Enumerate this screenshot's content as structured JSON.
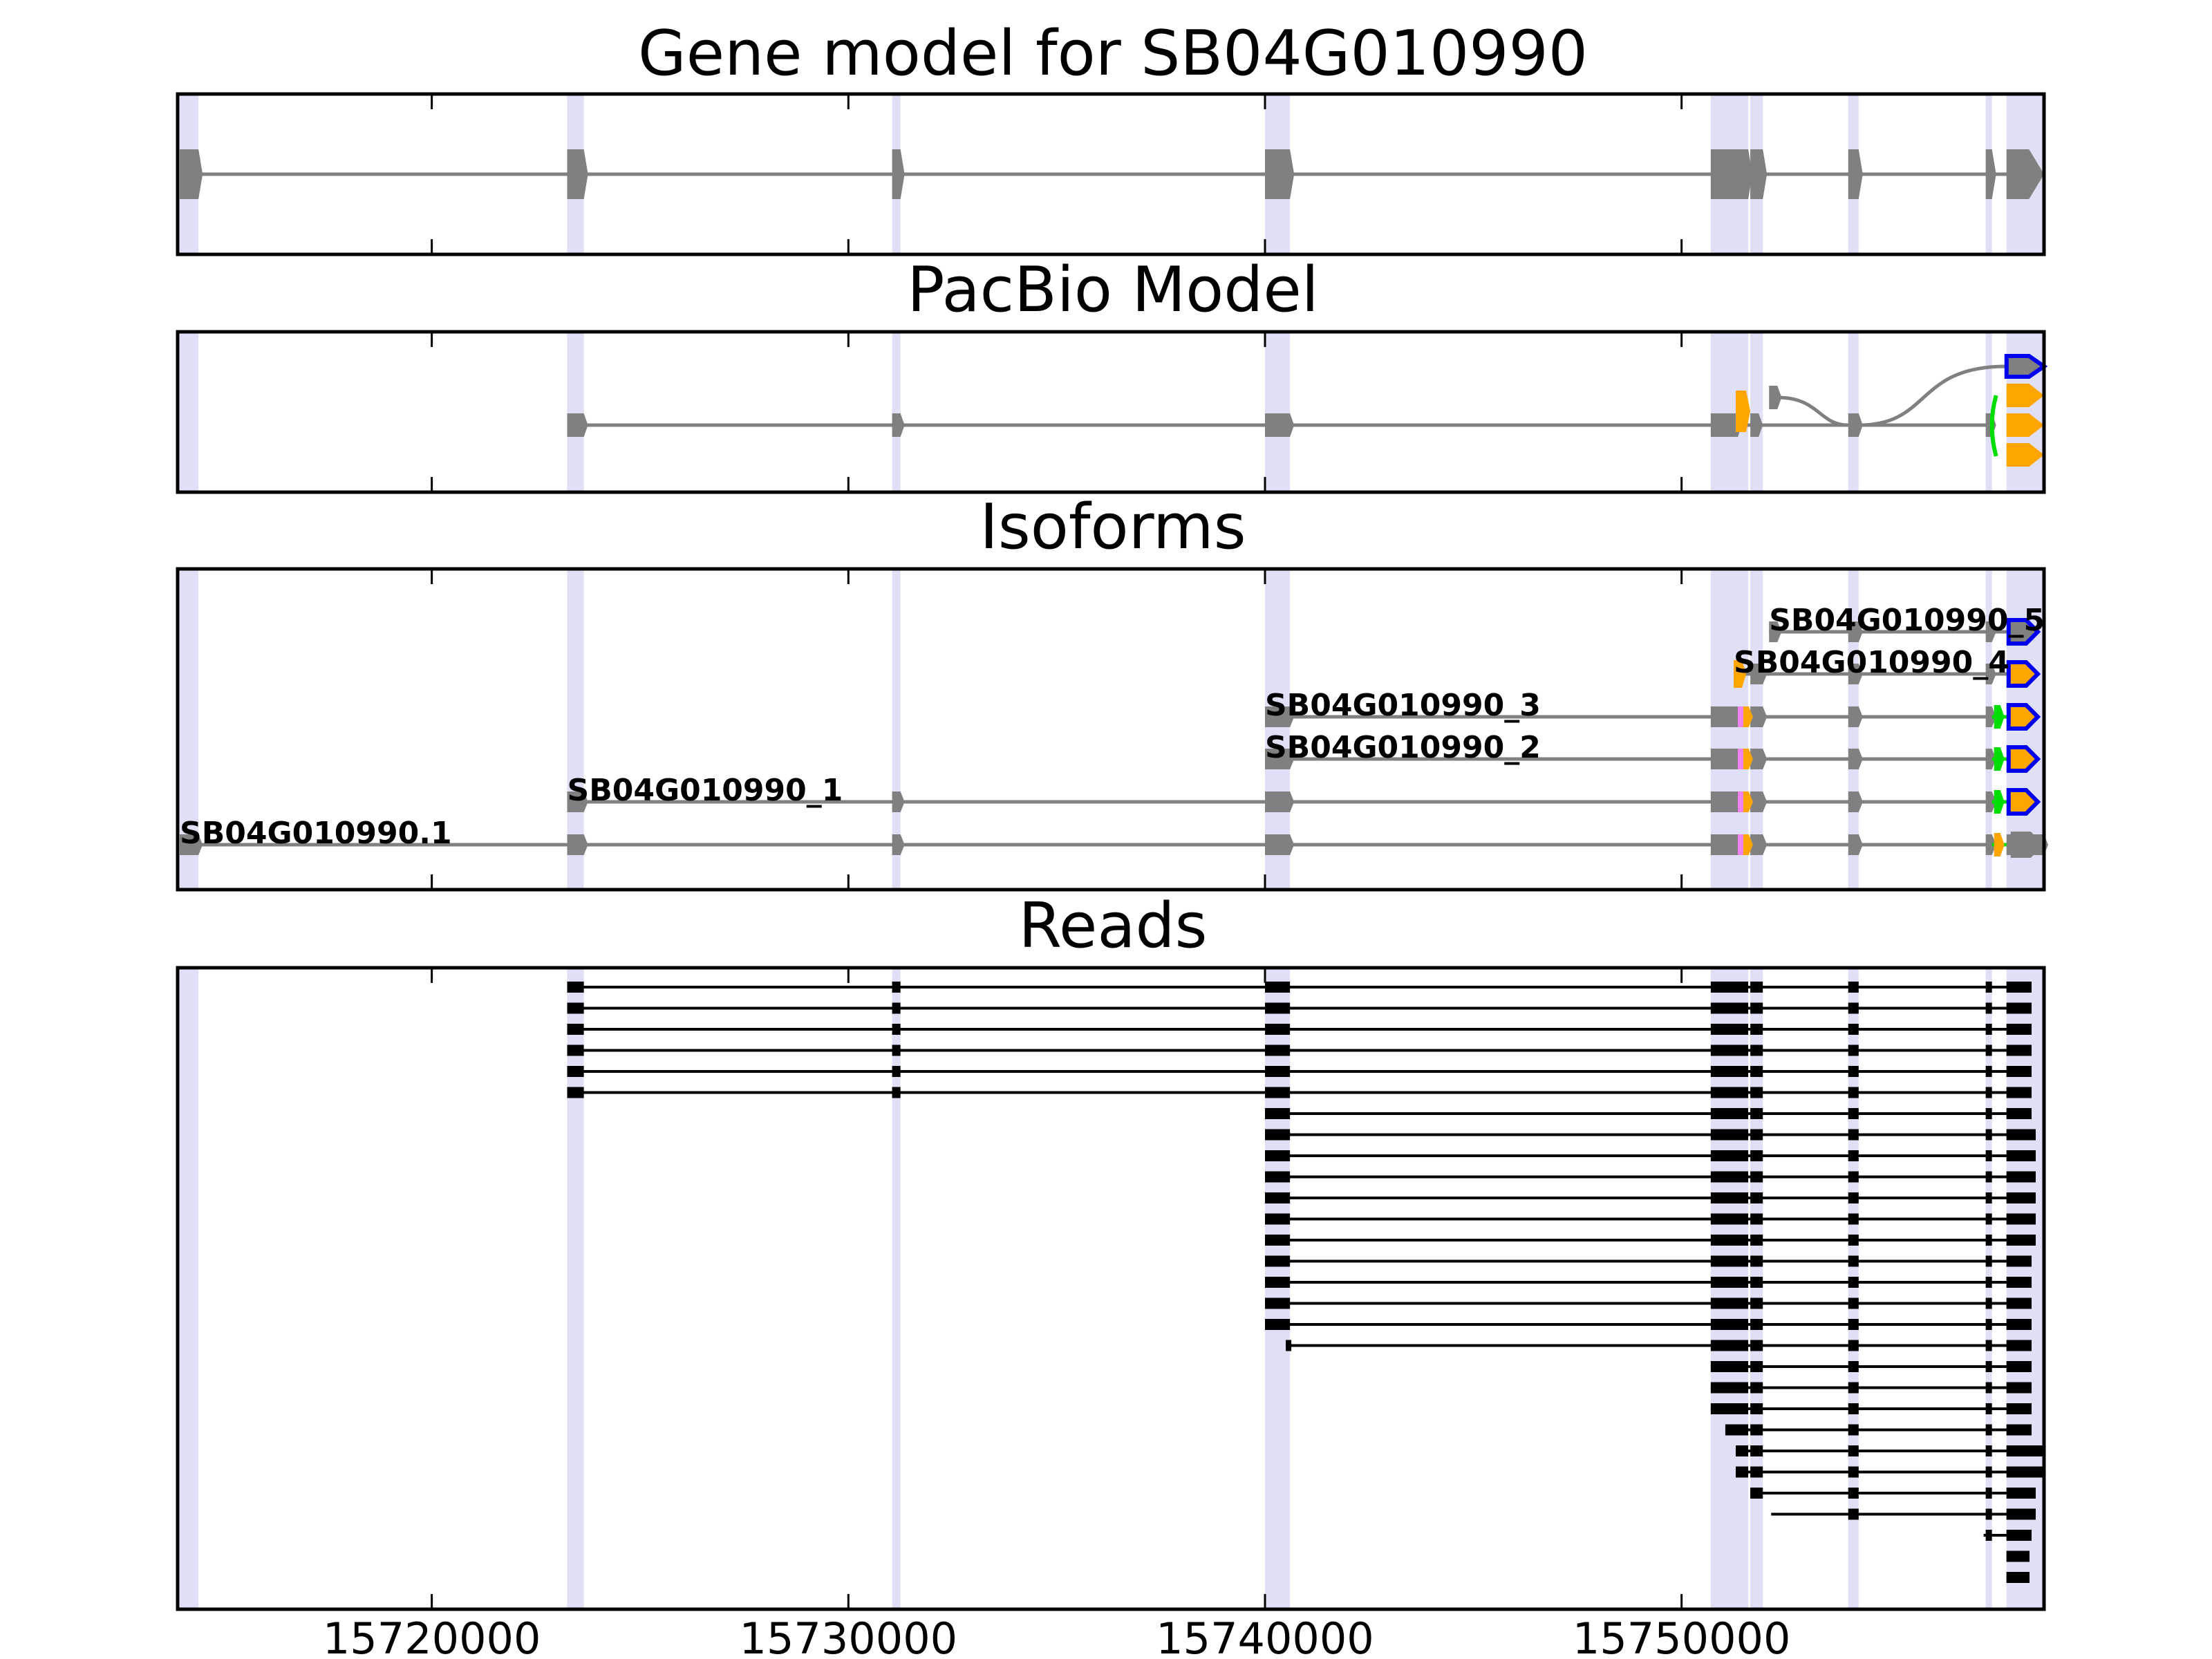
{
  "figure": {
    "title": "Gene model for SB04G010990",
    "x_ticks": [
      15720000,
      15730000,
      15740000,
      15750000
    ]
  },
  "colors": {
    "intron": "#808080",
    "exon": "#808080",
    "highlight": "#dcdcf5",
    "pacbio_outline": "#0000ee",
    "alt_orange": "#ffa500",
    "alt_green": "#00dd00",
    "alt_pink": "#ee82ee",
    "read": "#000000"
  },
  "chart_data": [
    {
      "type": "gene_structure",
      "title": "",
      "panel": "gene_model",
      "xlim": [
        15713900,
        15758700
      ],
      "exons": [
        [
          15713950,
          15714400
        ],
        [
          15723250,
          15723650
        ],
        [
          15731050,
          15731250
        ],
        [
          15740000,
          15740600
        ],
        [
          15750700,
          15751600
        ],
        [
          15751650,
          15751950
        ],
        [
          15754000,
          15754250
        ],
        [
          15757300,
          15757450
        ],
        [
          15757800,
          15758700
        ]
      ]
    },
    {
      "type": "gene_structure",
      "title": "PacBio Model",
      "panel": "pacbio_model",
      "main_exons": [
        [
          15723250,
          15723650
        ],
        [
          15731050,
          15731250
        ],
        [
          15740000,
          15740600
        ],
        [
          15750700,
          15751350
        ],
        [
          15751650,
          15751850
        ],
        [
          15754000,
          15754250
        ],
        [
          15757300,
          15757450
        ]
      ],
      "variant_exons": [
        [
          15751300,
          15751550
        ],
        [
          15757500,
          15757700
        ],
        [
          15757750,
          15758700
        ]
      ]
    },
    {
      "type": "isoforms",
      "title": "Isoforms",
      "isoforms": [
        {
          "name": "SB04G010990.1",
          "start": 15713950,
          "end": 15758700
        },
        {
          "name": "SB04G010990_1",
          "start": 15723250,
          "end": 15758450
        },
        {
          "name": "SB04G010990_2",
          "start": 15740000,
          "end": 15758450
        },
        {
          "name": "SB04G010990_3",
          "start": 15740000,
          "end": 15758450
        },
        {
          "name": "SB04G010990_4",
          "start": 15751250,
          "end": 15758450
        },
        {
          "name": "SB04G010990_5",
          "start": 15752100,
          "end": 15758450
        }
      ]
    },
    {
      "type": "reads",
      "title": "Reads",
      "read_count": 29,
      "reads": [
        {
          "start": 15723250,
          "end": 15758400
        },
        {
          "start": 15723250,
          "end": 15758400
        },
        {
          "start": 15723250,
          "end": 15758400
        },
        {
          "start": 15723250,
          "end": 15758400
        },
        {
          "start": 15723250,
          "end": 15758400
        },
        {
          "start": 15723250,
          "end": 15758400
        },
        {
          "start": 15740000,
          "end": 15758400
        },
        {
          "start": 15740000,
          "end": 15758500
        },
        {
          "start": 15740000,
          "end": 15758500
        },
        {
          "start": 15740000,
          "end": 15758500
        },
        {
          "start": 15740000,
          "end": 15758500
        },
        {
          "start": 15740000,
          "end": 15758500
        },
        {
          "start": 15740000,
          "end": 15758500
        },
        {
          "start": 15740000,
          "end": 15758400
        },
        {
          "start": 15740000,
          "end": 15758400
        },
        {
          "start": 15740000,
          "end": 15758400
        },
        {
          "start": 15740000,
          "end": 15758400
        },
        {
          "start": 15740500,
          "end": 15758400
        },
        {
          "start": 15750700,
          "end": 15758400
        },
        {
          "start": 15750700,
          "end": 15758400
        },
        {
          "start": 15750700,
          "end": 15758400
        },
        {
          "start": 15751050,
          "end": 15758400
        },
        {
          "start": 15751300,
          "end": 15758700
        },
        {
          "start": 15751300,
          "end": 15758700
        },
        {
          "start": 15751650,
          "end": 15758500
        },
        {
          "start": 15752150,
          "end": 15758500
        },
        {
          "start": 15757250,
          "end": 15758400
        },
        {
          "start": 15757800,
          "end": 15758350
        },
        {
          "start": 15757800,
          "end": 15758350
        }
      ]
    }
  ]
}
